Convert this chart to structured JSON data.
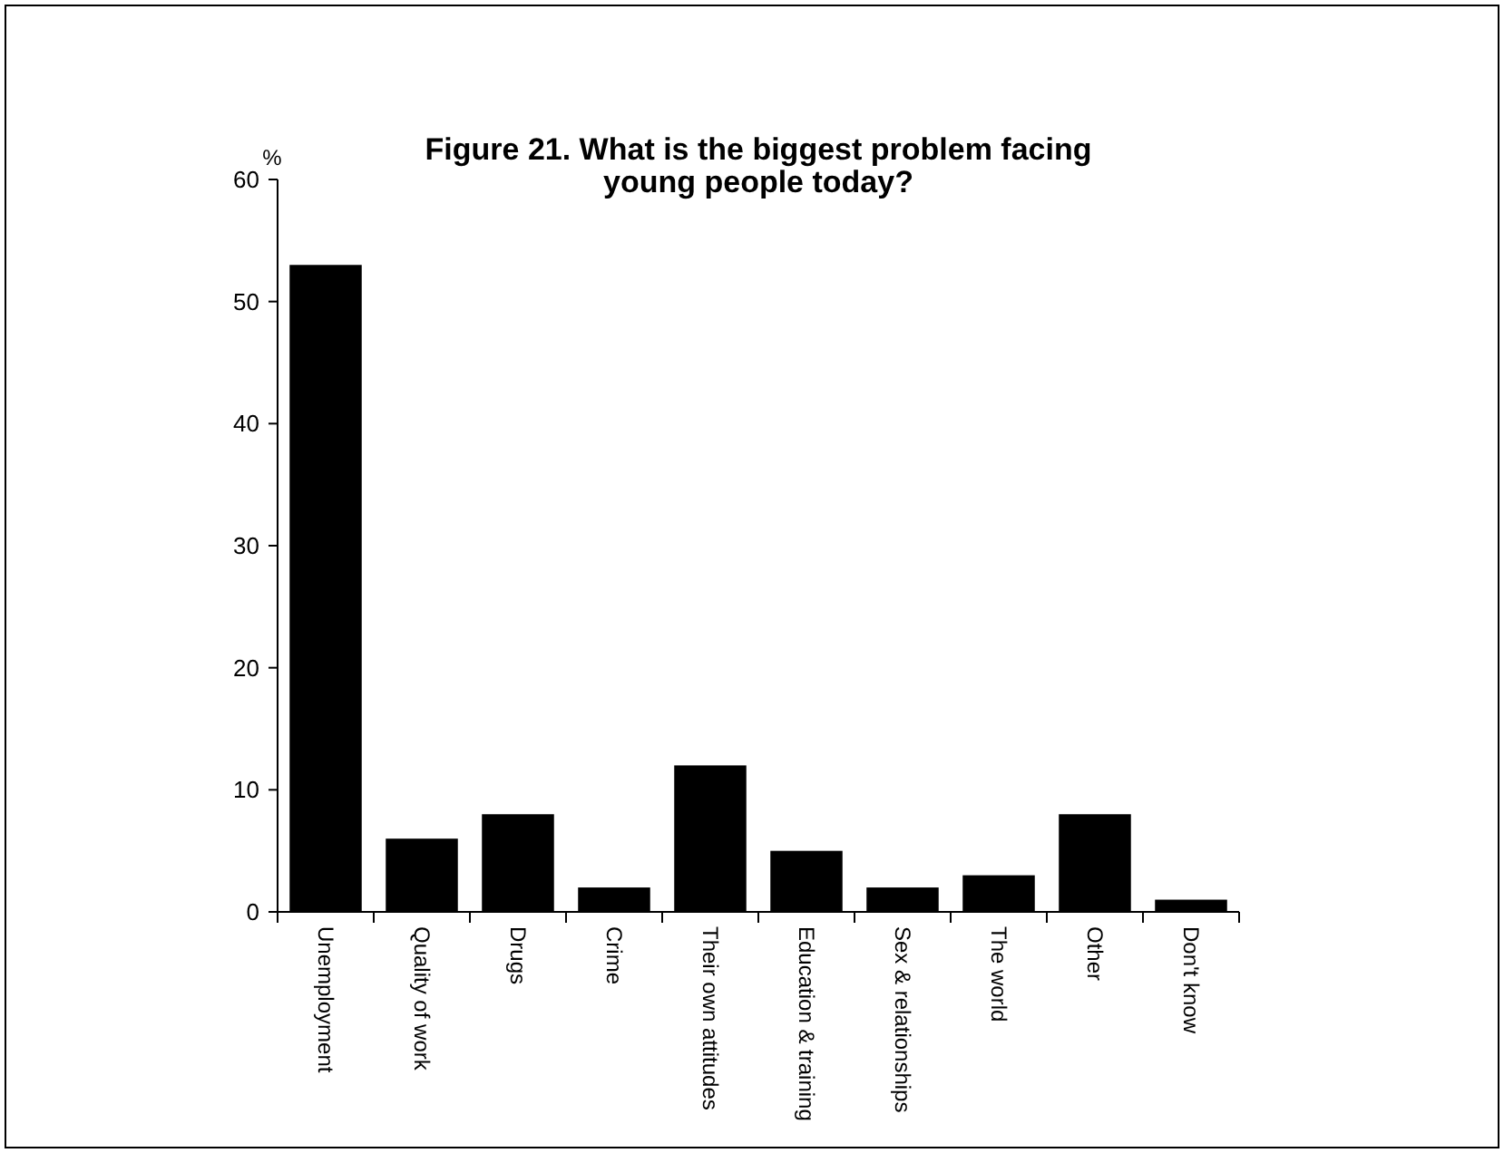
{
  "chart_data": {
    "type": "bar",
    "title": "Figure 21. What is the biggest problem facing young people today?",
    "ylabel": "%",
    "categories": [
      "Unemployment",
      "Quality of work",
      "Drugs",
      "Crime",
      "Their own attitudes",
      "Education & training",
      "Sex & relationships",
      "The world",
      "Other",
      "Don't know"
    ],
    "values": [
      53,
      6,
      8,
      2,
      12,
      5,
      2,
      3,
      8,
      1
    ],
    "color": "#000000",
    "ylim": [
      0,
      60
    ],
    "yticks": [
      0,
      10,
      20,
      30,
      40,
      50,
      60
    ],
    "grid": false
  }
}
